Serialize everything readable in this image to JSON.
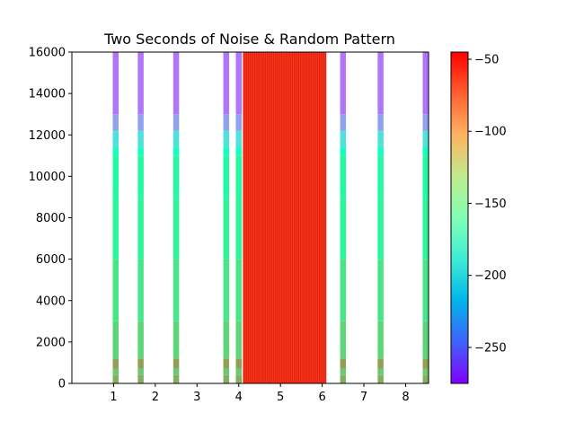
{
  "chart_data": {
    "type": "heatmap",
    "title": "Two Seconds of Noise & Random Pattern",
    "xlabel": "",
    "ylabel": "",
    "xlim": [
      0,
      8.55
    ],
    "ylim": [
      0,
      16000
    ],
    "x_ticks": [
      1,
      2,
      3,
      4,
      5,
      6,
      7,
      8
    ],
    "y_ticks": [
      0,
      2000,
      4000,
      6000,
      8000,
      10000,
      12000,
      14000,
      16000
    ],
    "grid": false,
    "colormap": "rainbow",
    "colorbar": {
      "range": [
        -275,
        -45
      ],
      "ticks": [
        -250,
        -200,
        -150,
        -100,
        -50
      ]
    },
    "noise_block": {
      "x_start": 4.1,
      "x_end": 6.1,
      "level_db": -55
    },
    "click_columns": [
      {
        "x_start": 0.98,
        "x_end": 1.12
      },
      {
        "x_start": 1.58,
        "x_end": 1.72
      },
      {
        "x_start": 2.43,
        "x_end": 2.57
      },
      {
        "x_start": 3.63,
        "x_end": 3.77
      },
      {
        "x_start": 3.93,
        "x_end": 4.07
      },
      {
        "x_start": 6.43,
        "x_end": 6.57
      },
      {
        "x_start": 7.33,
        "x_end": 7.47
      },
      {
        "x_start": 8.41,
        "x_end": 8.55
      }
    ],
    "click_spectrum_db": [
      {
        "freq_from": 0,
        "freq_to": 400,
        "level_db": -100
      },
      {
        "freq_from": 400,
        "freq_to": 700,
        "level_db": -112
      },
      {
        "freq_from": 700,
        "freq_to": 1200,
        "level_db": -95
      },
      {
        "freq_from": 1200,
        "freq_to": 3000,
        "level_db": -118
      },
      {
        "freq_from": 3000,
        "freq_to": 6000,
        "level_db": -128
      },
      {
        "freq_from": 6000,
        "freq_to": 9000,
        "level_db": -140
      },
      {
        "freq_from": 9000,
        "freq_to": 11000,
        "level_db": -145
      },
      {
        "freq_from": 11000,
        "freq_to": 11400,
        "level_db": -170
      },
      {
        "freq_from": 11400,
        "freq_to": 12200,
        "level_db": -195
      },
      {
        "freq_from": 12200,
        "freq_to": 13000,
        "level_db": -225
      },
      {
        "freq_from": 13000,
        "freq_to": 16000,
        "level_db": -240
      }
    ]
  }
}
